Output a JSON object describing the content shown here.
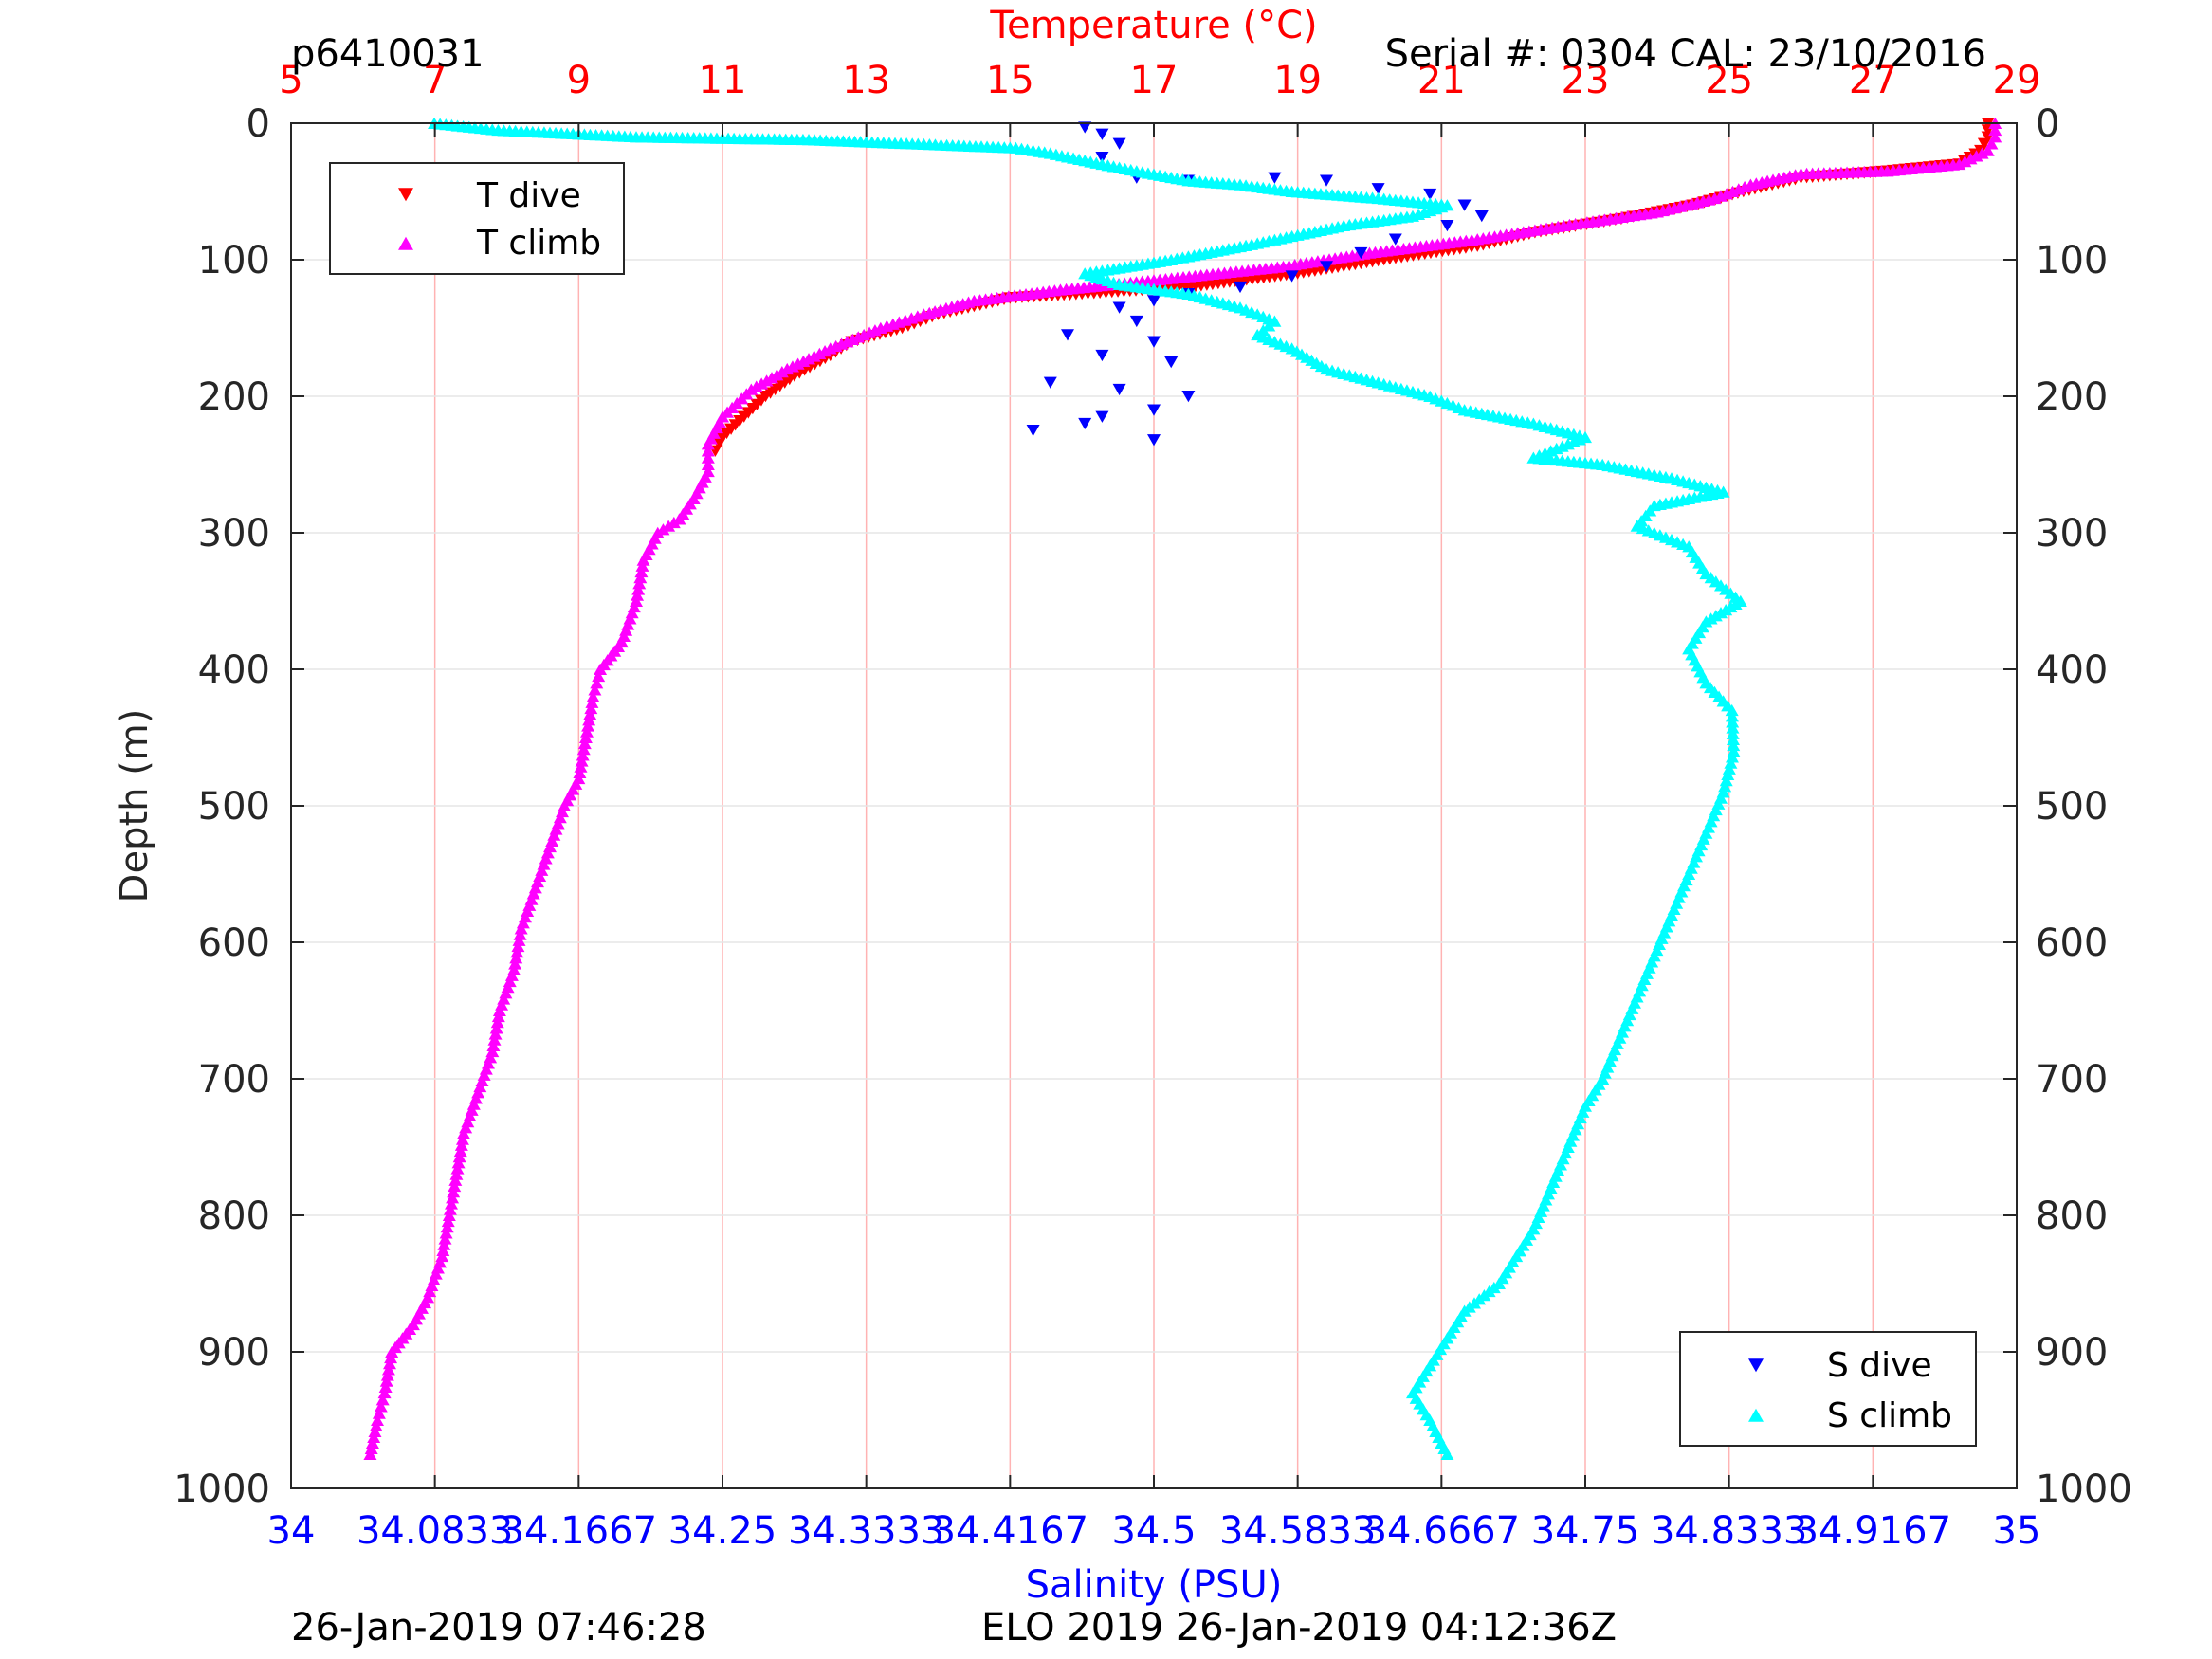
{
  "header": {
    "profile_id": "p6410031",
    "serial": "Serial #: 0304  CAL: 23/10/2016"
  },
  "footer": {
    "left_timestamp": "26-Jan-2019 07:46:28",
    "mission": "ELO 2019 26-Jan-2019 04:12:36Z"
  },
  "colors": {
    "temperature_axis": "#ff0000",
    "salinity_axis": "#0000ff",
    "t_dive": "#ff0000",
    "t_climb": "#ff00ff",
    "s_dive": "#0000ff",
    "s_climb": "#00ffff",
    "grid": "#ffb3b3"
  },
  "chart_data": {
    "type": "scatter",
    "ylabel": "Depth (m)",
    "ylim": [
      0,
      1000
    ],
    "y_reversed": true,
    "y_ticks": [
      "0",
      "100",
      "200",
      "300",
      "400",
      "500",
      "600",
      "700",
      "800",
      "900",
      "1000"
    ],
    "top_axis": {
      "label": "Temperature (°C)",
      "range": [
        5,
        29
      ],
      "ticks": [
        "5",
        "7",
        "9",
        "11",
        "13",
        "15",
        "17",
        "19",
        "21",
        "23",
        "25",
        "27",
        "29"
      ]
    },
    "bottom_axis": {
      "label": "Salinity (PSU)",
      "range": [
        34,
        35
      ],
      "ticks": [
        "34",
        "34.0833",
        "34.1667",
        "34.25",
        "34.3333",
        "34.4167",
        "34.5",
        "34.5833",
        "34.6667",
        "34.75",
        "34.8333",
        "34.9167",
        "35"
      ]
    },
    "grid": true,
    "legends": {
      "temperature": {
        "placement": "top-left",
        "entries": [
          "T dive",
          "T climb"
        ]
      },
      "salinity": {
        "placement": "bottom-right",
        "entries": [
          "S dive",
          "S climb"
        ]
      }
    },
    "series": [
      {
        "name": "T dive",
        "axis": "temperature",
        "marker": "triangle-down",
        "points": [
          [
            28.6,
            0
          ],
          [
            28.6,
            10
          ],
          [
            28.5,
            20
          ],
          [
            28.2,
            30
          ],
          [
            27.2,
            35
          ],
          [
            26.0,
            40
          ],
          [
            25.2,
            50
          ],
          [
            24.5,
            60
          ],
          [
            23.5,
            70
          ],
          [
            22.3,
            80
          ],
          [
            21.5,
            90
          ],
          [
            20.2,
            100
          ],
          [
            19.0,
            110
          ],
          [
            17.5,
            120
          ],
          [
            16.0,
            125
          ],
          [
            15.0,
            128
          ],
          [
            14.0,
            140
          ],
          [
            13.5,
            150
          ],
          [
            12.8,
            160
          ],
          [
            12.5,
            170
          ],
          [
            12.0,
            185
          ],
          [
            11.6,
            200
          ],
          [
            11.3,
            215
          ],
          [
            11.0,
            230
          ],
          [
            10.9,
            240
          ]
        ]
      },
      {
        "name": "T climb",
        "axis": "temperature",
        "marker": "triangle-up",
        "points": [
          [
            28.7,
            0
          ],
          [
            28.7,
            10
          ],
          [
            28.6,
            20
          ],
          [
            28.2,
            30
          ],
          [
            27.2,
            35
          ],
          [
            26.0,
            37
          ],
          [
            25.3,
            45
          ],
          [
            24.8,
            55
          ],
          [
            24.0,
            65
          ],
          [
            22.7,
            75
          ],
          [
            21.5,
            85
          ],
          [
            20.0,
            95
          ],
          [
            18.8,
            105
          ],
          [
            17.0,
            115
          ],
          [
            15.7,
            122
          ],
          [
            14.5,
            130
          ],
          [
            13.8,
            140
          ],
          [
            13.2,
            150
          ],
          [
            12.5,
            165
          ],
          [
            11.9,
            180
          ],
          [
            11.4,
            195
          ],
          [
            11.0,
            215
          ],
          [
            10.8,
            235
          ],
          [
            10.8,
            255
          ],
          [
            10.6,
            275
          ],
          [
            10.4,
            290
          ],
          [
            10.1,
            300
          ],
          [
            9.9,
            320
          ],
          [
            9.8,
            350
          ],
          [
            9.6,
            380
          ],
          [
            9.3,
            400
          ],
          [
            9.2,
            420
          ],
          [
            9.1,
            450
          ],
          [
            9.0,
            480
          ],
          [
            8.8,
            500
          ],
          [
            8.6,
            530
          ],
          [
            8.4,
            560
          ],
          [
            8.2,
            590
          ],
          [
            8.1,
            620
          ],
          [
            7.9,
            650
          ],
          [
            7.8,
            680
          ],
          [
            7.6,
            710
          ],
          [
            7.4,
            740
          ],
          [
            7.3,
            770
          ],
          [
            7.2,
            800
          ],
          [
            7.1,
            830
          ],
          [
            6.9,
            860
          ],
          [
            6.7,
            880
          ],
          [
            6.4,
            900
          ],
          [
            6.3,
            930
          ],
          [
            6.2,
            950
          ],
          [
            6.1,
            975
          ]
        ]
      },
      {
        "name": "S dive",
        "axis": "salinity",
        "marker": "triangle-down",
        "points": [
          [
            34.46,
            3
          ],
          [
            34.47,
            8
          ],
          [
            34.48,
            15
          ],
          [
            34.47,
            25
          ],
          [
            34.49,
            40
          ],
          [
            34.52,
            42
          ],
          [
            34.57,
            40
          ],
          [
            34.6,
            42
          ],
          [
            34.63,
            48
          ],
          [
            34.66,
            52
          ],
          [
            34.68,
            60
          ],
          [
            34.69,
            68
          ],
          [
            34.67,
            75
          ],
          [
            34.64,
            85
          ],
          [
            34.62,
            95
          ],
          [
            34.6,
            105
          ],
          [
            34.58,
            112
          ],
          [
            34.55,
            120
          ],
          [
            34.52,
            125
          ],
          [
            34.5,
            130
          ],
          [
            34.48,
            135
          ],
          [
            34.49,
            145
          ],
          [
            34.45,
            155
          ],
          [
            34.5,
            160
          ],
          [
            34.47,
            170
          ],
          [
            34.51,
            175
          ],
          [
            34.44,
            190
          ],
          [
            34.48,
            195
          ],
          [
            34.52,
            200
          ],
          [
            34.5,
            210
          ],
          [
            34.47,
            215
          ],
          [
            34.46,
            220
          ],
          [
            34.43,
            225
          ],
          [
            34.5,
            232
          ]
        ]
      },
      {
        "name": "S climb",
        "axis": "salinity",
        "marker": "triangle-up",
        "points": [
          [
            34.083,
            0
          ],
          [
            34.12,
            5
          ],
          [
            34.2,
            10
          ],
          [
            34.3,
            12
          ],
          [
            34.36,
            15
          ],
          [
            34.42,
            18
          ],
          [
            34.44,
            22
          ],
          [
            34.47,
            30
          ],
          [
            34.49,
            35
          ],
          [
            34.52,
            42
          ],
          [
            34.55,
            45
          ],
          [
            34.58,
            50
          ],
          [
            34.63,
            55
          ],
          [
            34.67,
            60
          ],
          [
            34.65,
            68
          ],
          [
            34.61,
            75
          ],
          [
            34.56,
            88
          ],
          [
            34.51,
            100
          ],
          [
            34.46,
            110
          ],
          [
            34.48,
            118
          ],
          [
            34.52,
            125
          ],
          [
            34.55,
            135
          ],
          [
            34.57,
            145
          ],
          [
            34.56,
            155
          ],
          [
            34.58,
            165
          ],
          [
            34.6,
            180
          ],
          [
            34.63,
            190
          ],
          [
            34.66,
            200
          ],
          [
            34.68,
            210
          ],
          [
            34.72,
            220
          ],
          [
            34.75,
            230
          ],
          [
            34.72,
            245
          ],
          [
            34.76,
            250
          ],
          [
            34.8,
            260
          ],
          [
            34.83,
            270
          ],
          [
            34.79,
            280
          ],
          [
            34.78,
            295
          ],
          [
            34.81,
            310
          ],
          [
            34.82,
            330
          ],
          [
            34.84,
            350
          ],
          [
            34.82,
            365
          ],
          [
            34.81,
            385
          ],
          [
            34.82,
            410
          ],
          [
            34.835,
            430
          ],
          [
            34.836,
            460
          ],
          [
            34.83,
            490
          ],
          [
            34.82,
            520
          ],
          [
            34.81,
            550
          ],
          [
            34.8,
            580
          ],
          [
            34.79,
            610
          ],
          [
            34.78,
            640
          ],
          [
            34.77,
            670
          ],
          [
            34.76,
            700
          ],
          [
            34.75,
            720
          ],
          [
            34.74,
            750
          ],
          [
            34.73,
            780
          ],
          [
            34.72,
            810
          ],
          [
            34.71,
            830
          ],
          [
            34.7,
            850
          ],
          [
            34.68,
            870
          ],
          [
            34.67,
            890
          ],
          [
            34.66,
            910
          ],
          [
            34.65,
            930
          ],
          [
            34.66,
            950
          ],
          [
            34.67,
            975
          ]
        ]
      }
    ]
  }
}
